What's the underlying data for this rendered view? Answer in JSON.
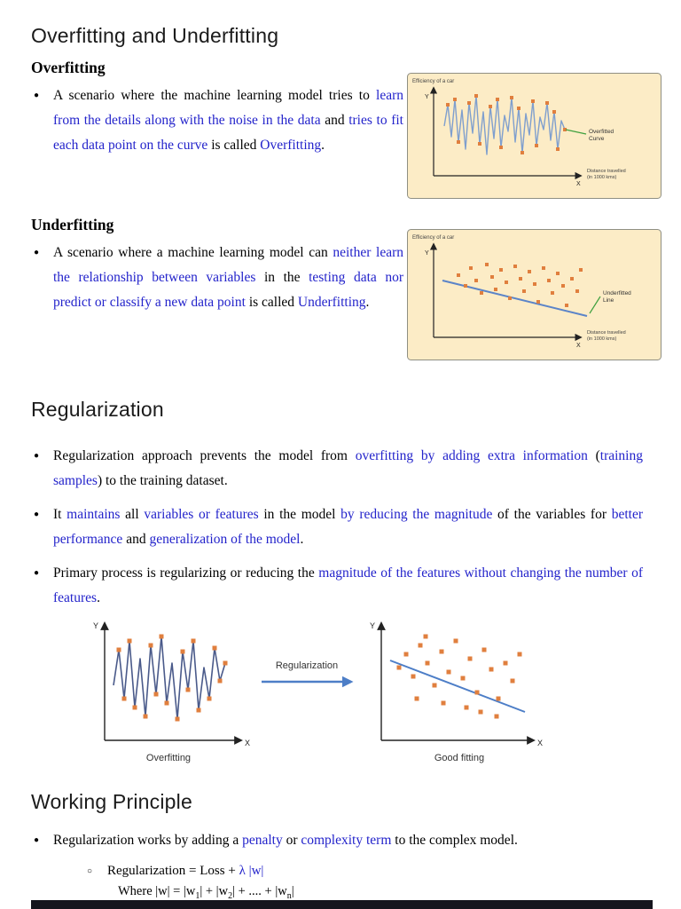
{
  "glyphs": {
    "bullet": "●",
    "sub_bullet": "○"
  },
  "colors": {
    "text_blue": "#2323cb",
    "figure_bg": "#fcecc6",
    "point_orange": "#e07f3e",
    "curve_blue": "#7f9fce",
    "line_blue": "#4d7ec7",
    "annotation_green": "#3fa03f",
    "bottom_bar": "#15151d"
  },
  "headings": {
    "main": "Overfitting and Underfitting",
    "overfitting": "Overfitting",
    "underfitting": "Underfitting",
    "regularization": "Regularization",
    "working_principle": "Working Principle"
  },
  "paragraphs": {
    "overfitting": [
      {
        "t": "A scenario where the machine learning model tries to "
      },
      {
        "t": "learn from the details along with the noise in the data",
        "c": "blue"
      },
      {
        "t": " and "
      },
      {
        "t": "tries to fit each data point on the curve",
        "c": "blue"
      },
      {
        "t": " is called "
      },
      {
        "t": "Overfitting",
        "c": "blue"
      },
      {
        "t": "."
      }
    ],
    "underfitting": [
      {
        "t": "A scenario where a machine learning model can "
      },
      {
        "t": "neither learn the relationship between variables",
        "c": "blue"
      },
      {
        "t": " in the "
      },
      {
        "t": "testing data nor predict or classify a new data point",
        "c": "blue"
      },
      {
        "t": " is called "
      },
      {
        "t": "Underfitting",
        "c": "blue"
      },
      {
        "t": "."
      }
    ],
    "reg1": [
      {
        "t": "Regularization approach prevents the model from "
      },
      {
        "t": "overfitting by adding extra information",
        "c": "blue"
      },
      {
        "t": " ("
      },
      {
        "t": "training samples",
        "c": "blue"
      },
      {
        "t": ") to the training dataset."
      }
    ],
    "reg2": [
      {
        "t": "It "
      },
      {
        "t": "maintains",
        "c": "blue"
      },
      {
        "t": " all "
      },
      {
        "t": "variables or features",
        "c": "blue"
      },
      {
        "t": " in the model "
      },
      {
        "t": "by reducing the magnitude",
        "c": "blue"
      },
      {
        "t": " of the variables for "
      },
      {
        "t": "better performance",
        "c": "blue"
      },
      {
        "t": " and "
      },
      {
        "t": "generalization of the model",
        "c": "blue"
      },
      {
        "t": "."
      }
    ],
    "reg3": [
      {
        "t": "Primary process is regularizing or reducing the "
      },
      {
        "t": "magnitude of the features without changing the number of features",
        "c": "blue"
      },
      {
        "t": "."
      }
    ],
    "working": [
      {
        "t": "Regularization works by adding a "
      },
      {
        "t": "penalty",
        "c": "blue"
      },
      {
        "t": " or "
      },
      {
        "t": "complexity term",
        "c": "blue"
      },
      {
        "t": " to the complex model."
      }
    ],
    "formula": [
      {
        "t": "Regularization = Loss + "
      },
      {
        "t": "λ |w|",
        "c": "blue"
      }
    ],
    "formula_where": [
      {
        "t": "Where |w| = |w"
      },
      {
        "t": "1",
        "sub": true
      },
      {
        "t": "| + |w"
      },
      {
        "t": "2",
        "sub": true
      },
      {
        "t": "| + .... + |w"
      },
      {
        "t": "n",
        "sub": true
      },
      {
        "t": "|"
      }
    ]
  },
  "figures": {
    "overfit": {
      "eff_label": "Efficiency of a car",
      "y": "Y",
      "x": "X",
      "xt1": "Distance travelled",
      "xt2": "(in 1000 kms)",
      "ann1": "Overfitted",
      "ann2": "Curve"
    },
    "underfit": {
      "eff_label": "Efficiency of a car",
      "y": "Y",
      "x": "X",
      "xt1": "Distance travelled",
      "xt2": "(in 1000 kms)",
      "ann1": "Underfitted",
      "ann2": "Line"
    },
    "reg": {
      "left_y": "Y",
      "left_x": "X",
      "left_caption": "Overfitting",
      "arrow_label": "Regularization",
      "right_y": "Y",
      "right_x": "X",
      "right_caption": "Good fitting"
    }
  }
}
